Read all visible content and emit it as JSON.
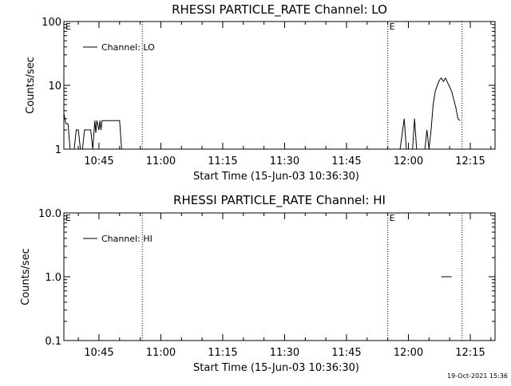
{
  "page": {
    "timestamp": "19-Oct-2021 15:36"
  },
  "chart_data": [
    {
      "type": "line",
      "title": "RHESSI PARTICLE_RATE Channel: LO",
      "xlabel": "Start Time (15-Jun-03 10:36:30)",
      "ylabel": "Counts/sec",
      "y_scale": "log",
      "ylim": [
        1,
        100
      ],
      "yticks": [
        "1",
        "10",
        "100"
      ],
      "xlim": [
        "10:36:30",
        "12:21:00"
      ],
      "xticks": [
        "10:45",
        "11:00",
        "11:15",
        "11:30",
        "11:45",
        "12:00",
        "12:15"
      ],
      "event_markers": [
        {
          "label": "E",
          "time": "10:36:30"
        },
        {
          "label": "",
          "time": "10:55:30"
        },
        {
          "label": "E",
          "time": "11:55:00"
        },
        {
          "label": "",
          "time": "12:13:00"
        }
      ],
      "series": [
        {
          "name": "Channel: LO",
          "points": [
            [
              "10:36:30",
              3.6
            ],
            [
              "10:37:00",
              2.5
            ],
            [
              "10:37:30",
              2.5
            ],
            [
              "10:38:00",
              1.0
            ],
            [
              "10:39:00",
              1.0
            ],
            [
              "10:39:30",
              2.0
            ],
            [
              "10:40:00",
              2.0
            ],
            [
              "10:40:30",
              1.0
            ],
            [
              "10:41:00",
              1.0
            ],
            [
              "10:41:30",
              2.0
            ],
            [
              "10:42:00",
              2.0
            ],
            [
              "10:43:00",
              2.0
            ],
            [
              "10:43:30",
              1.0
            ],
            [
              "10:44:00",
              2.8
            ],
            [
              "10:44:15",
              1.8
            ],
            [
              "10:44:30",
              2.8
            ],
            [
              "10:45:00",
              2.0
            ],
            [
              "10:45:15",
              2.8
            ],
            [
              "10:45:30",
              2.0
            ],
            [
              "10:45:45",
              2.8
            ],
            [
              "10:46:00",
              2.8
            ],
            [
              "10:48:00",
              2.8
            ],
            [
              "10:50:00",
              2.8
            ],
            [
              "10:50:30",
              1.0
            ],
            [
              "11:58:00",
              1.0
            ],
            [
              "11:59:00",
              3.0
            ],
            [
              "11:59:30",
              1.0
            ],
            [
              "12:01:00",
              1.0
            ],
            [
              "12:01:30",
              3.0
            ],
            [
              "12:02:00",
              1.0
            ],
            [
              "12:04:00",
              1.0
            ],
            [
              "12:04:30",
              2.0
            ],
            [
              "12:05:00",
              1.0
            ],
            [
              "12:05:30",
              2.0
            ],
            [
              "12:06:00",
              5.0
            ],
            [
              "12:06:30",
              8.0
            ],
            [
              "12:07:00",
              10.0
            ],
            [
              "12:07:30",
              12.0
            ],
            [
              "12:08:00",
              13.0
            ],
            [
              "12:08:30",
              11.5
            ],
            [
              "12:09:00",
              13.0
            ],
            [
              "12:09:30",
              11.0
            ],
            [
              "12:10:00",
              9.5
            ],
            [
              "12:10:30",
              8.0
            ],
            [
              "12:11:00",
              6.0
            ],
            [
              "12:11:30",
              4.5
            ],
            [
              "12:12:00",
              3.0
            ],
            [
              "12:12:30",
              2.8
            ]
          ]
        }
      ]
    },
    {
      "type": "line",
      "title": "RHESSI PARTICLE_RATE Channel: HI",
      "xlabel": "Start Time (15-Jun-03 10:36:30)",
      "ylabel": "Counts/sec",
      "y_scale": "log",
      "ylim": [
        0.1,
        10
      ],
      "yticks": [
        "0.1",
        "1.0",
        "10.0"
      ],
      "xlim": [
        "10:36:30",
        "12:21:00"
      ],
      "xticks": [
        "10:45",
        "11:00",
        "11:15",
        "11:30",
        "11:45",
        "12:00",
        "12:15"
      ],
      "event_markers": [
        {
          "label": "E",
          "time": "10:36:30"
        },
        {
          "label": "",
          "time": "10:55:30"
        },
        {
          "label": "E",
          "time": "11:55:00"
        },
        {
          "label": "",
          "time": "12:13:00"
        }
      ],
      "series": [
        {
          "name": "Channel: HI",
          "points": [
            [
              "12:08:00",
              1.0
            ],
            [
              "12:10:30",
              1.0
            ]
          ]
        }
      ]
    }
  ]
}
